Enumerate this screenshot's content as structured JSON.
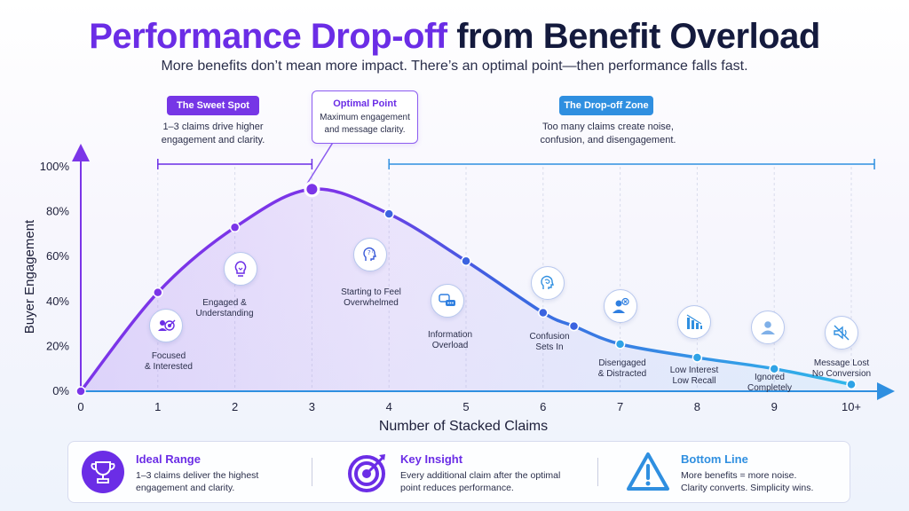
{
  "title": {
    "part1": "Performance Drop-off",
    "part2": "from Benefit Overload"
  },
  "subtitle": "More benefits don’t mean more impact. There’s an optimal point—then performance falls fast.",
  "zones": {
    "sweet_spot": {
      "label": "The Sweet Spot",
      "line1": "1–3 claims drive higher",
      "line2": "engagement and clarity."
    },
    "drop_off": {
      "label": "The Drop-off Zone",
      "line1": "Too many claims create noise,",
      "line2": "confusion, and disengagement."
    }
  },
  "optimal": {
    "title": "Optimal Point",
    "line1": "Maximum engagement",
    "line2": "and message clarity."
  },
  "stages": [
    {
      "line1": "Focused",
      "line2": "& Interested",
      "icon": "target-icon"
    },
    {
      "line1": "Engaged &",
      "line2": "Understanding",
      "icon": "lightbulb-icon"
    },
    {
      "line1": "Starting to Feel",
      "line2": "Overwhelmed",
      "icon": "thinking-head-icon"
    },
    {
      "line1": "Information",
      "line2": "Overload",
      "icon": "chat-bubbles-icon"
    },
    {
      "line1": "Confusion",
      "line2": "Sets In",
      "icon": "brain-icon"
    },
    {
      "line1": "Disengaged",
      "line2": "& Distracted",
      "icon": "user-x-icon"
    },
    {
      "line1": "Low Interest",
      "line2": "Low Recall",
      "icon": "declining-bars-icon"
    },
    {
      "line1": "Ignored",
      "line2": "Completely",
      "icon": "faded-user-icon"
    },
    {
      "line1": "Message Lost",
      "line2": "No Conversion",
      "icon": "muted-speaker-icon"
    }
  ],
  "chart_data": {
    "type": "line",
    "xlabel": "Number of Stacked Claims",
    "ylabel": "Buyer Engagement",
    "x_ticks": [
      "0",
      "1",
      "2",
      "3",
      "4",
      "5",
      "6",
      "7",
      "8",
      "9",
      "10+"
    ],
    "y_ticks": [
      "0%",
      "20%",
      "40%",
      "60%",
      "80%",
      "100%"
    ],
    "ylim": [
      0,
      100
    ],
    "xlim": [
      0,
      10
    ],
    "grid": true,
    "points": [
      {
        "x": 0,
        "y": 0
      },
      {
        "x": 1,
        "y": 44
      },
      {
        "x": 2,
        "y": 73
      },
      {
        "x": 3,
        "y": 90
      },
      {
        "x": 4,
        "y": 79
      },
      {
        "x": 5,
        "y": 58
      },
      {
        "x": 6,
        "y": 35
      },
      {
        "x": 6.4,
        "y": 29
      },
      {
        "x": 7,
        "y": 21
      },
      {
        "x": 8,
        "y": 15
      },
      {
        "x": 9,
        "y": 10
      },
      {
        "x": 10,
        "y": 3
      }
    ],
    "sweet_spot_range": [
      1,
      3
    ],
    "drop_off_range": [
      4,
      10.3
    ],
    "colors": {
      "rise": "#7b35e8",
      "fall": "#2fa3e6",
      "sweet": "#6b2de6",
      "drop": "#2f8fe0"
    }
  },
  "bottom": [
    {
      "title": "Ideal Range",
      "line1": "1–3 claims deliver the highest",
      "line2": "engagement and clarity.",
      "icon": "trophy-icon"
    },
    {
      "title": "Key Insight",
      "line1": "Every additional claim after the optimal",
      "line2": "point reduces performance.",
      "icon": "bullseye-icon"
    },
    {
      "title": "Bottom Line",
      "line1": "More benefits = more noise.",
      "line2": "Clarity converts. Simplicity wins.",
      "icon": "warning-icon"
    }
  ]
}
